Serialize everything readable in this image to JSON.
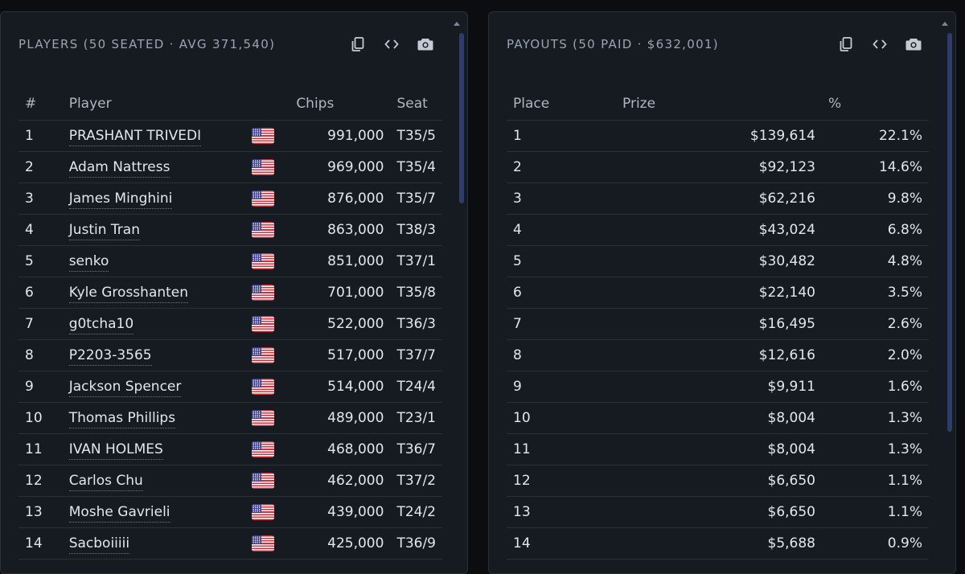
{
  "players_panel": {
    "title": "PLAYERS (50 SEATED · AVG 371,540)",
    "icons": [
      "copy-icon",
      "code-icon",
      "camera-icon"
    ],
    "columns": [
      "#",
      "Player",
      "",
      "Chips",
      "Seat"
    ],
    "rows": [
      {
        "rank": "1",
        "name": "PRASHANT TRIVEDI",
        "country": "US",
        "chips": "991,000",
        "seat": "T35/5"
      },
      {
        "rank": "2",
        "name": "Adam Nattress",
        "country": "US",
        "chips": "969,000",
        "seat": "T35/4"
      },
      {
        "rank": "3",
        "name": "James Minghini",
        "country": "US",
        "chips": "876,000",
        "seat": "T35/7"
      },
      {
        "rank": "4",
        "name": "Justin Tran",
        "country": "US",
        "chips": "863,000",
        "seat": "T38/3"
      },
      {
        "rank": "5",
        "name": "senko",
        "country": "US",
        "chips": "851,000",
        "seat": "T37/1"
      },
      {
        "rank": "6",
        "name": "Kyle Grosshanten",
        "country": "US",
        "chips": "701,000",
        "seat": "T35/8"
      },
      {
        "rank": "7",
        "name": "g0tcha10",
        "country": "US",
        "chips": "522,000",
        "seat": "T36/3"
      },
      {
        "rank": "8",
        "name": "P2203-3565",
        "country": "US",
        "chips": "517,000",
        "seat": "T37/7"
      },
      {
        "rank": "9",
        "name": "Jackson Spencer",
        "country": "US",
        "chips": "514,000",
        "seat": "T24/4"
      },
      {
        "rank": "10",
        "name": "Thomas Phillips",
        "country": "US",
        "chips": "489,000",
        "seat": "T23/1"
      },
      {
        "rank": "11",
        "name": "IVAN HOLMES",
        "country": "US",
        "chips": "468,000",
        "seat": "T36/7"
      },
      {
        "rank": "12",
        "name": "Carlos Chu",
        "country": "US",
        "chips": "462,000",
        "seat": "T37/2"
      },
      {
        "rank": "13",
        "name": "Moshe Gavrieli",
        "country": "US",
        "chips": "439,000",
        "seat": "T24/2"
      },
      {
        "rank": "14",
        "name": "Sacboiiiii",
        "country": "US",
        "chips": "425,000",
        "seat": "T36/9"
      }
    ]
  },
  "payouts_panel": {
    "title": "PAYOUTS (50 PAID · $632,001)",
    "icons": [
      "copy-icon",
      "code-icon",
      "camera-icon"
    ],
    "columns": [
      "Place",
      "Prize",
      "%"
    ],
    "rows": [
      {
        "place": "1",
        "prize": "$139,614",
        "pct": "22.1%"
      },
      {
        "place": "2",
        "prize": "$92,123",
        "pct": "14.6%"
      },
      {
        "place": "3",
        "prize": "$62,216",
        "pct": "9.8%"
      },
      {
        "place": "4",
        "prize": "$43,024",
        "pct": "6.8%"
      },
      {
        "place": "5",
        "prize": "$30,482",
        "pct": "4.8%"
      },
      {
        "place": "6",
        "prize": "$22,140",
        "pct": "3.5%"
      },
      {
        "place": "7",
        "prize": "$16,495",
        "pct": "2.6%"
      },
      {
        "place": "8",
        "prize": "$12,616",
        "pct": "2.0%"
      },
      {
        "place": "9",
        "prize": "$9,911",
        "pct": "1.6%"
      },
      {
        "place": "10",
        "prize": "$8,004",
        "pct": "1.3%"
      },
      {
        "place": "11",
        "prize": "$8,004",
        "pct": "1.3%"
      },
      {
        "place": "12",
        "prize": "$6,650",
        "pct": "1.1%"
      },
      {
        "place": "13",
        "prize": "$6,650",
        "pct": "1.1%"
      },
      {
        "place": "14",
        "prize": "$5,688",
        "pct": "0.9%"
      }
    ]
  },
  "colors": {
    "background": "#0b0d11",
    "panel": "#161a21",
    "border": "#2a3038",
    "title": "#9aa4b2",
    "text": "#e2e7ed",
    "scroll_thumb": "#2e3c6b"
  }
}
